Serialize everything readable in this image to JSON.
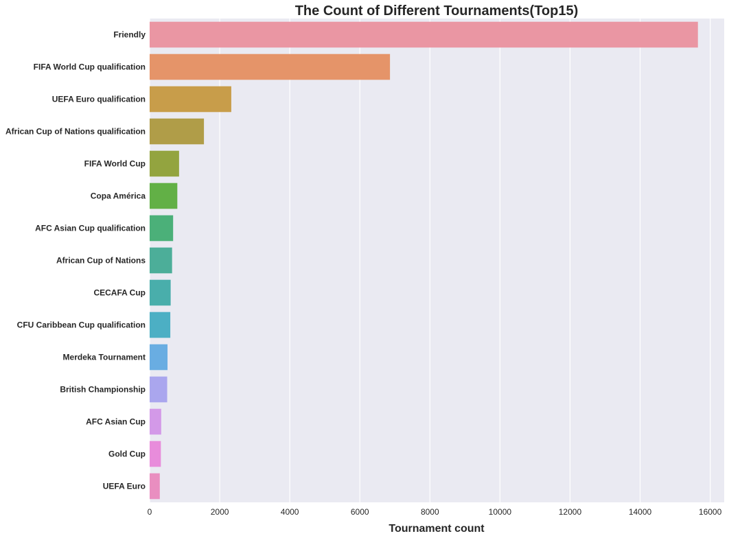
{
  "chart_data": {
    "type": "bar",
    "orientation": "horizontal",
    "title": "The Count of Different Tournaments(Top15)",
    "xlabel": "Tournament count",
    "ylabel": "",
    "xlim": [
      0,
      16400
    ],
    "xticks": [
      0,
      2000,
      4000,
      6000,
      8000,
      10000,
      12000,
      14000,
      16000
    ],
    "grid": true,
    "background": "#EAEAF2",
    "categories": [
      "Friendly",
      "FIFA World Cup qualification",
      "UEFA Euro qualification",
      "African Cup of Nations qualification",
      "FIFA World Cup",
      "Copa América",
      "AFC Asian Cup qualification",
      "African Cup of Nations",
      "CECAFA Cup",
      "CFU Caribbean Cup qualification",
      "Merdeka Tournament",
      "British Championship",
      "AFC Asian Cup",
      "Gold Cup",
      "UEFA Euro"
    ],
    "values": [
      15650,
      6860,
      2330,
      1550,
      840,
      790,
      670,
      640,
      600,
      590,
      510,
      500,
      330,
      320,
      290
    ],
    "colors": [
      "#EA96A3",
      "#E59469",
      "#C89D4A",
      "#B09D48",
      "#93A43F",
      "#62B046",
      "#4BB079",
      "#4CAE99",
      "#49AEAB",
      "#4CAFC4",
      "#69ADE2",
      "#AAA6EE",
      "#D399E8",
      "#E88CDB",
      "#E98EC0"
    ]
  }
}
